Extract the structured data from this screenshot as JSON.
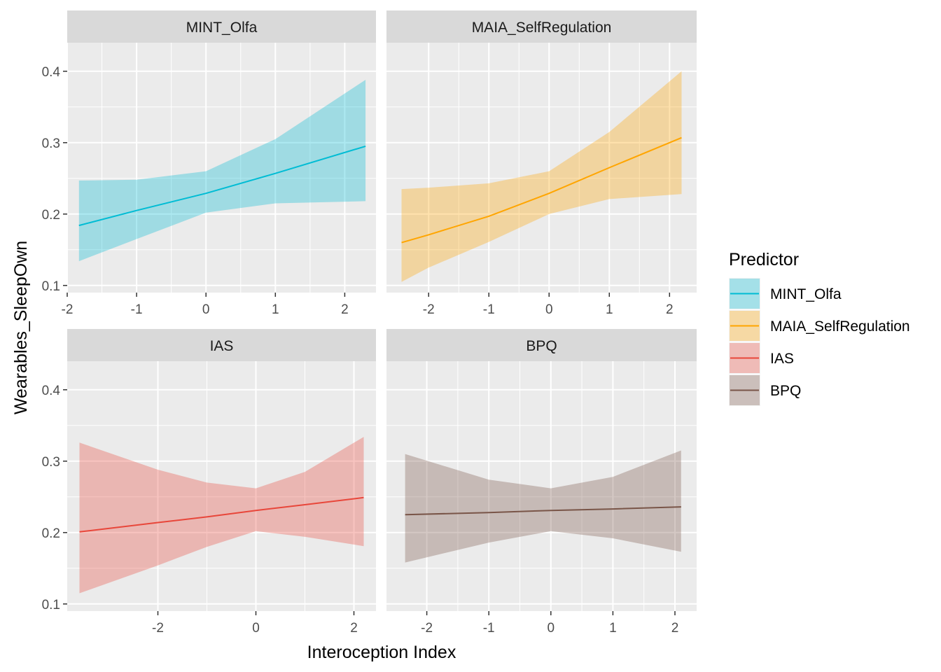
{
  "chart_data": {
    "type": "line",
    "xlabel": "Interoception Index",
    "ylabel": "Wearables_SleepOwn",
    "legend": {
      "title": "Predictor",
      "placement": "right",
      "entries": [
        "MINT_Olfa",
        "MAIA_SelfRegulation",
        "IAS",
        "BPQ"
      ]
    },
    "y_range": [
      0.09,
      0.44
    ],
    "y_ticks": [
      0.1,
      0.2,
      0.3,
      0.4
    ],
    "y_tick_labels": [
      "0.1",
      "0.2",
      "0.3",
      "0.4"
    ],
    "grid": true,
    "panels": [
      {
        "name": "MINT_Olfa",
        "color": "#00BCD4",
        "x_range": [
          -2.0,
          2.45
        ],
        "x_ticks": [
          -2,
          -1,
          0,
          1,
          2
        ],
        "x_tick_labels": [
          "-2",
          "-1",
          "0",
          "1",
          "2"
        ],
        "x": [
          -1.83,
          -1.0,
          0.0,
          1.0,
          2.3
        ],
        "fit": [
          0.184,
          0.205,
          0.229,
          0.257,
          0.295
        ],
        "lower": [
          0.134,
          0.165,
          0.202,
          0.215,
          0.218
        ],
        "upper": [
          0.247,
          0.248,
          0.26,
          0.305,
          0.388
        ]
      },
      {
        "name": "MAIA_SelfRegulation",
        "color": "#FFA500",
        "x_range": [
          -2.7,
          2.45
        ],
        "x_ticks": [
          -2,
          -1,
          0,
          1,
          2
        ],
        "x_tick_labels": [
          "-2",
          "-1",
          "0",
          "1",
          "2"
        ],
        "x": [
          -2.45,
          -2.0,
          -1.0,
          0.0,
          1.0,
          2.2
        ],
        "fit": [
          0.16,
          0.171,
          0.197,
          0.229,
          0.265,
          0.307
        ],
        "lower": [
          0.105,
          0.125,
          0.161,
          0.2,
          0.221,
          0.228
        ],
        "upper": [
          0.235,
          0.237,
          0.243,
          0.26,
          0.315,
          0.4
        ]
      },
      {
        "name": "IAS",
        "color": "#E8463A",
        "x_range": [
          -3.85,
          2.45
        ],
        "x_ticks": [
          -2,
          0,
          2
        ],
        "x_tick_labels": [
          "-2",
          "0",
          "2"
        ],
        "x": [
          -3.6,
          -2.0,
          -1.0,
          0.0,
          1.0,
          2.2
        ],
        "fit": [
          0.201,
          0.214,
          0.222,
          0.231,
          0.239,
          0.249
        ],
        "lower": [
          0.115,
          0.154,
          0.18,
          0.202,
          0.194,
          0.181
        ],
        "upper": [
          0.326,
          0.288,
          0.27,
          0.262,
          0.285,
          0.334
        ]
      },
      {
        "name": "BPQ",
        "color": "#795548",
        "x_range": [
          -2.65,
          2.35
        ],
        "x_ticks": [
          -2,
          -1,
          0,
          1,
          2
        ],
        "x_tick_labels": [
          "-2",
          "-1",
          "0",
          "1",
          "2"
        ],
        "x": [
          -2.35,
          -1.0,
          0.0,
          1.0,
          2.1
        ],
        "fit": [
          0.225,
          0.228,
          0.231,
          0.233,
          0.236
        ],
        "lower": [
          0.158,
          0.186,
          0.202,
          0.192,
          0.173
        ],
        "upper": [
          0.31,
          0.274,
          0.262,
          0.278,
          0.315
        ]
      }
    ]
  }
}
